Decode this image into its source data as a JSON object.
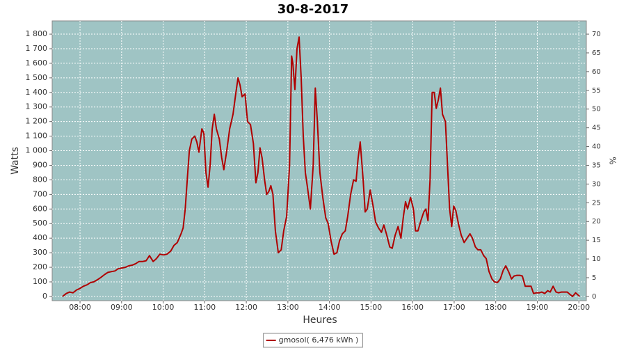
{
  "chart_data": {
    "type": "line",
    "title": "30-8-2017",
    "xlabel": "Heures",
    "ylabel": "Watts",
    "y2label": "%",
    "x": [
      7.58,
      7.67,
      7.75,
      7.83,
      7.92,
      8.0,
      8.08,
      8.17,
      8.25,
      8.33,
      8.42,
      8.5,
      8.59,
      8.67,
      8.75,
      8.84,
      8.92,
      9.0,
      9.09,
      9.17,
      9.26,
      9.34,
      9.42,
      9.51,
      9.59,
      9.67,
      9.76,
      9.84,
      9.92,
      10.01,
      10.09,
      10.18,
      10.26,
      10.34,
      10.43,
      10.48,
      10.53,
      10.58,
      10.63,
      10.69,
      10.76,
      10.81,
      10.86,
      10.93,
      10.98,
      11.03,
      11.08,
      11.13,
      11.18,
      11.23,
      11.28,
      11.35,
      11.41,
      11.46,
      11.53,
      11.6,
      11.68,
      11.75,
      11.8,
      11.85,
      11.9,
      11.97,
      12.03,
      12.1,
      12.17,
      12.23,
      12.28,
      12.33,
      12.38,
      12.44,
      12.49,
      12.54,
      12.59,
      12.64,
      12.7,
      12.77,
      12.84,
      12.9,
      12.97,
      13.04,
      13.09,
      13.12,
      13.17,
      13.22,
      13.27,
      13.32,
      13.37,
      13.42,
      13.47,
      13.54,
      13.61,
      13.66,
      13.71,
      13.77,
      13.84,
      13.91,
      13.97,
      14.04,
      14.11,
      14.18,
      14.24,
      14.31,
      14.38,
      14.44,
      14.51,
      14.58,
      14.64,
      14.69,
      14.74,
      14.81,
      14.86,
      14.91,
      14.98,
      15.05,
      15.11,
      15.18,
      15.25,
      15.31,
      15.38,
      15.45,
      15.51,
      15.58,
      15.65,
      15.72,
      15.78,
      15.83,
      15.88,
      15.95,
      16.02,
      16.07,
      16.13,
      16.2,
      16.27,
      16.32,
      16.37,
      16.42,
      16.47,
      16.52,
      16.57,
      16.62,
      16.67,
      16.72,
      16.79,
      16.84,
      16.89,
      16.94,
      16.99,
      17.04,
      17.11,
      17.17,
      17.24,
      17.31,
      17.38,
      17.44,
      17.51,
      17.57,
      17.64,
      17.71,
      17.77,
      17.84,
      17.91,
      17.97,
      18.04,
      18.11,
      18.18,
      18.24,
      18.31,
      18.38,
      18.44,
      18.51,
      18.58,
      18.64,
      18.71,
      18.78,
      18.85,
      18.91,
      18.98,
      19.05,
      19.11,
      19.18,
      19.25,
      19.31,
      19.38,
      19.45,
      19.51,
      19.58,
      19.65,
      19.72,
      19.78,
      19.85,
      19.92,
      19.98,
      20.02
    ],
    "series": [
      {
        "name": "gmosol( 6,476 kWh )",
        "color": "#b00000",
        "values": [
          0,
          20,
          30,
          25,
          45,
          55,
          70,
          80,
          95,
          100,
          115,
          130,
          150,
          165,
          170,
          175,
          190,
          195,
          200,
          210,
          215,
          225,
          240,
          240,
          245,
          280,
          240,
          260,
          290,
          285,
          290,
          310,
          350,
          370,
          430,
          470,
          600,
          800,
          1000,
          1080,
          1100,
          1060,
          990,
          1150,
          1120,
          850,
          750,
          900,
          1150,
          1250,
          1150,
          1080,
          950,
          870,
          1000,
          1150,
          1250,
          1400,
          1500,
          1450,
          1370,
          1390,
          1200,
          1180,
          1050,
          780,
          850,
          1020,
          950,
          800,
          700,
          720,
          760,
          700,
          450,
          300,
          320,
          450,
          550,
          900,
          1650,
          1600,
          1420,
          1700,
          1780,
          1500,
          1100,
          850,
          750,
          600,
          900,
          1430,
          1200,
          850,
          680,
          540,
          500,
          380,
          290,
          300,
          380,
          430,
          450,
          550,
          700,
          800,
          790,
          950,
          1060,
          800,
          580,
          600,
          730,
          620,
          510,
          470,
          440,
          490,
          420,
          340,
          330,
          420,
          480,
          400,
          550,
          650,
          600,
          680,
          600,
          450,
          450,
          520,
          580,
          600,
          520,
          800,
          1400,
          1400,
          1290,
          1350,
          1430,
          1250,
          1200,
          900,
          600,
          480,
          620,
          590,
          490,
          420,
          370,
          400,
          430,
          400,
          340,
          320,
          320,
          280,
          260,
          170,
          120,
          100,
          95,
          120,
          180,
          210,
          170,
          120,
          140,
          145,
          145,
          140,
          70,
          70,
          70,
          20,
          25,
          25,
          30,
          20,
          40,
          30,
          70,
          30,
          25,
          30,
          30,
          30,
          15,
          0,
          25,
          10,
          0
        ]
      }
    ],
    "xlim": [
      7.33,
      20.18
    ],
    "xticks": [
      {
        "value": 8,
        "label": "08:00"
      },
      {
        "value": 9,
        "label": "09:00"
      },
      {
        "value": 10,
        "label": "10:00"
      },
      {
        "value": 11,
        "label": "11:00"
      },
      {
        "value": 12,
        "label": "12:00"
      },
      {
        "value": 13,
        "label": "13:00"
      },
      {
        "value": 14,
        "label": "14:00"
      },
      {
        "value": 15,
        "label": "15:00"
      },
      {
        "value": 16,
        "label": "16:00"
      },
      {
        "value": 17,
        "label": "17:00"
      },
      {
        "value": 18,
        "label": "18:00"
      },
      {
        "value": 19,
        "label": "19:00"
      },
      {
        "value": 20,
        "label": "20:00"
      }
    ],
    "ylim": [
      -29,
      1891
    ],
    "yticks": [
      0,
      100,
      200,
      300,
      400,
      500,
      600,
      700,
      800,
      900,
      {
        "value": 1000,
        "label": "1 000"
      },
      {
        "value": 1100,
        "label": "1 100"
      },
      {
        "value": 1200,
        "label": "1 200"
      },
      {
        "value": 1300,
        "label": "1 300"
      },
      {
        "value": 1400,
        "label": "1 400"
      },
      {
        "value": 1500,
        "label": "1 500"
      },
      {
        "value": 1600,
        "label": "1 600"
      },
      {
        "value": 1700,
        "label": "1 700"
      },
      {
        "value": 1800,
        "label": "1 800"
      }
    ],
    "y2lim": [
      -1.13,
      73.54
    ],
    "y2ticks": [
      0,
      5,
      10,
      15,
      20,
      25,
      30,
      35,
      40,
      45,
      50,
      55,
      60,
      65,
      70
    ],
    "grid": true,
    "plot_color": "#9fc4c4",
    "legend": "bottom"
  }
}
